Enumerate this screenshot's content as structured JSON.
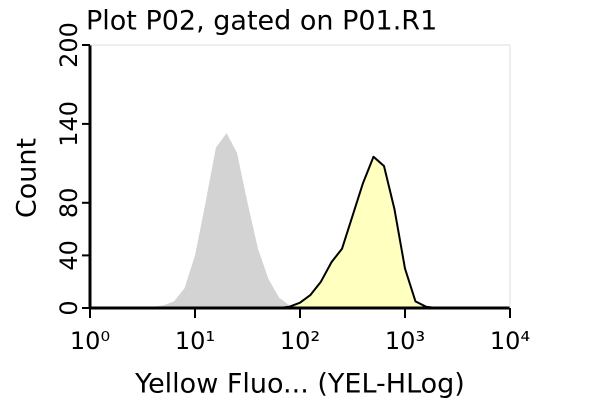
{
  "chart_data": {
    "type": "histogram-overlay",
    "title": "Plot P02, gated on P01.R1",
    "x_label": "Yellow Fluo... (YEL-HLog)",
    "y_label": "Count",
    "x_log": true,
    "xlim": [
      1,
      10000
    ],
    "xticks": [
      {
        "value": 1,
        "label": "10⁰"
      },
      {
        "value": 10,
        "label": "10¹"
      },
      {
        "value": 100,
        "label": "10²"
      },
      {
        "value": 1000,
        "label": "10³"
      },
      {
        "value": 10000,
        "label": "10⁴"
      }
    ],
    "ylim": [
      0,
      200
    ],
    "yticks": [
      0,
      40,
      80,
      140,
      200
    ],
    "x": [
      1,
      1.26,
      1.58,
      2,
      2.51,
      3.16,
      3.98,
      5.01,
      6.31,
      7.94,
      10,
      12.6,
      15.8,
      20,
      25.1,
      31.6,
      39.8,
      50.1,
      63.1,
      79.4,
      100,
      126,
      158,
      200,
      251,
      316,
      398,
      501,
      631,
      794,
      1000,
      1260,
      1580,
      2000,
      2510,
      3160,
      3980,
      5010,
      6310,
      7940,
      10000
    ],
    "series": [
      {
        "color": "#d3d3d3",
        "outline": "none",
        "values": [
          0,
          0,
          0,
          0,
          0,
          0,
          1,
          2,
          5,
          15,
          40,
          80,
          122,
          133,
          118,
          80,
          45,
          22,
          8,
          2,
          0,
          0,
          0,
          0,
          0,
          0,
          0,
          0,
          0,
          0,
          0,
          0,
          0,
          0,
          0,
          0,
          0,
          0,
          0,
          0,
          0
        ]
      },
      {
        "color": "#ffffc0",
        "outline": "#000000",
        "values": [
          0,
          0,
          0,
          0,
          0,
          0,
          0,
          0,
          0,
          0,
          0,
          0,
          0,
          0,
          0,
          0,
          0,
          0,
          0,
          1,
          4,
          10,
          20,
          35,
          45,
          70,
          95,
          115,
          108,
          75,
          30,
          5,
          1,
          0,
          0,
          0,
          0,
          0,
          0,
          0,
          0
        ]
      }
    ]
  }
}
